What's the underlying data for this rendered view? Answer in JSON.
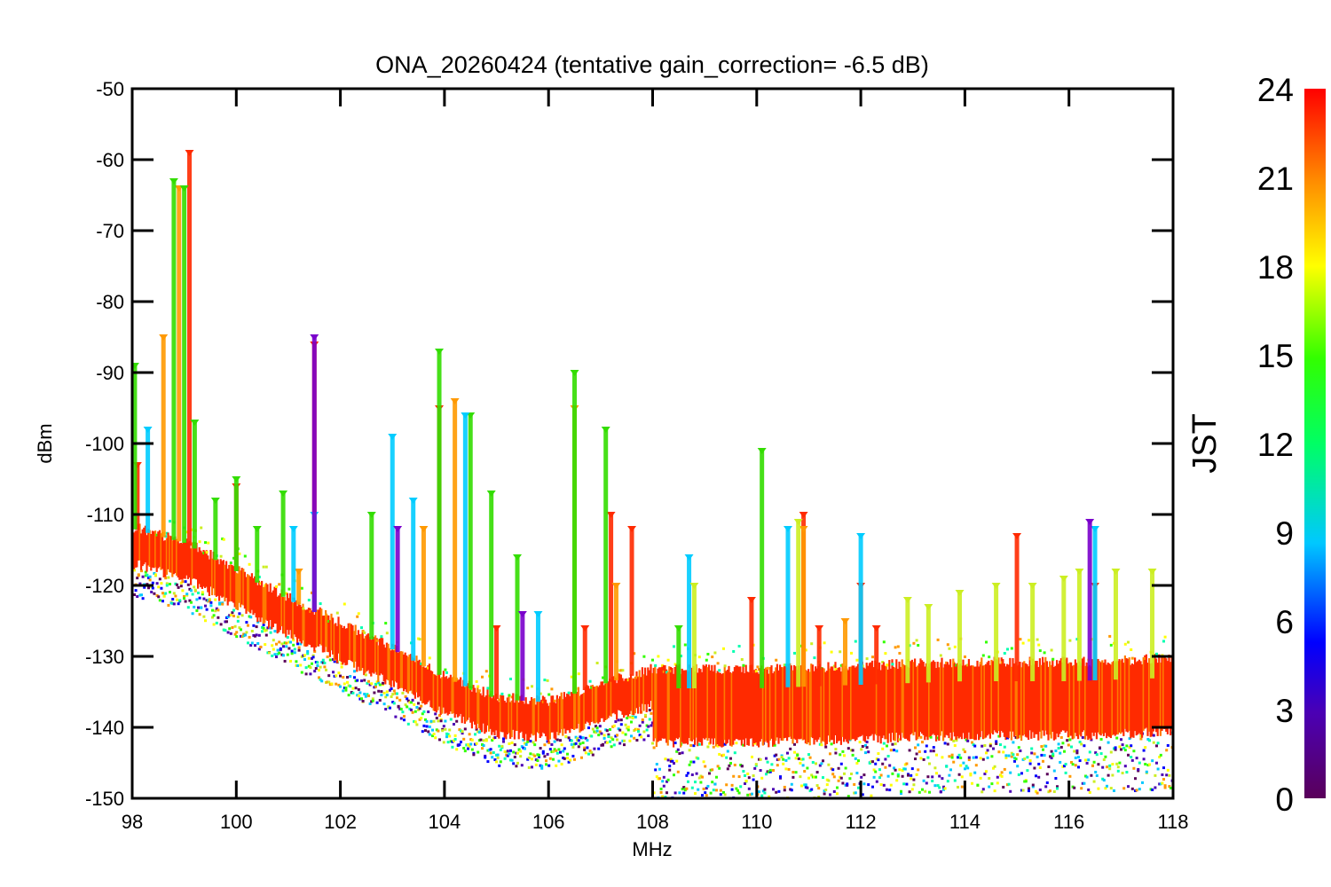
{
  "chart_data": {
    "type": "scatter",
    "title": "ONA_20260424 (tentative gain_correction= -6.5 dB)",
    "xlabel": "MHz",
    "ylabel": "dBm",
    "xlim": [
      98,
      118
    ],
    "ylim": [
      -150,
      -50
    ],
    "x_ticks": [
      98,
      100,
      102,
      104,
      106,
      108,
      110,
      112,
      114,
      116,
      118
    ],
    "y_ticks": [
      -50,
      -60,
      -70,
      -80,
      -90,
      -100,
      -110,
      -120,
      -130,
      -140,
      -150
    ],
    "colorbar": {
      "label": "JST",
      "range": [
        0,
        24
      ],
      "ticks": [
        0,
        3,
        6,
        9,
        12,
        15,
        18,
        21,
        24
      ]
    },
    "noise_floor": {
      "x": [
        98,
        99,
        100,
        101,
        102,
        103,
        104,
        105,
        106,
        107,
        107.95,
        108,
        110,
        112,
        114,
        116,
        118
      ],
      "level_dBm": [
        -115,
        -117,
        -121,
        -125,
        -128.5,
        -132,
        -136,
        -139,
        -139.5,
        -137,
        -135,
        -137.5,
        -137.5,
        -137,
        -136.5,
        -136.5,
        -136
      ]
    },
    "series": [
      {
        "name": "red carriers (22-24 JST)",
        "color": "#ff2a00",
        "points": [
          [
            98.1,
            -103
          ],
          [
            99.1,
            -59
          ],
          [
            100,
            -106
          ],
          [
            101.5,
            -86
          ],
          [
            103.9,
            -95
          ],
          [
            105,
            -126
          ],
          [
            106.7,
            -126
          ],
          [
            107.2,
            -110
          ],
          [
            107.6,
            -112
          ],
          [
            109.9,
            -122
          ],
          [
            110.9,
            -110
          ],
          [
            111.2,
            -126
          ],
          [
            112,
            -120
          ],
          [
            112.3,
            -126
          ],
          [
            115,
            -113
          ],
          [
            116.5,
            -120
          ]
        ]
      },
      {
        "name": "orange carriers (20-22 JST)",
        "color": "#ff9900",
        "points": [
          [
            98.6,
            -85
          ],
          [
            98.9,
            -64
          ],
          [
            101.2,
            -118
          ],
          [
            103.6,
            -112
          ],
          [
            104.2,
            -94
          ],
          [
            106.5,
            -95
          ],
          [
            107.3,
            -120
          ],
          [
            110.9,
            -112
          ],
          [
            111.7,
            -125
          ]
        ]
      },
      {
        "name": "green carriers (13-16 JST)",
        "color": "#33dd00",
        "points": [
          [
            98.05,
            -89
          ],
          [
            98.8,
            -63
          ],
          [
            99,
            -64
          ],
          [
            99.2,
            -97
          ],
          [
            99.6,
            -108
          ],
          [
            100,
            -105
          ],
          [
            100.4,
            -112
          ],
          [
            100.9,
            -107
          ],
          [
            102.6,
            -110
          ],
          [
            103.9,
            -87
          ],
          [
            104.5,
            -96
          ],
          [
            104.9,
            -107
          ],
          [
            105.4,
            -116
          ],
          [
            106.5,
            -90
          ],
          [
            107.1,
            -98
          ],
          [
            108.5,
            -126
          ],
          [
            110.1,
            -101
          ]
        ]
      },
      {
        "name": "cyan / blue carriers (7-11 JST)",
        "color": "#00ccff",
        "points": [
          [
            98.3,
            -98
          ],
          [
            101.1,
            -112
          ],
          [
            101.5,
            -110
          ],
          [
            103,
            -99
          ],
          [
            103.4,
            -108
          ],
          [
            104.4,
            -96
          ],
          [
            105.8,
            -124
          ],
          [
            108.7,
            -116
          ],
          [
            110.6,
            -112
          ],
          [
            112,
            -113
          ],
          [
            116.5,
            -112
          ]
        ]
      },
      {
        "name": "purple carriers (0-3 JST)",
        "color": "#7a00cc",
        "points": [
          [
            101.5,
            -85
          ],
          [
            103.1,
            -112
          ],
          [
            105.5,
            -124
          ],
          [
            116.4,
            -111
          ]
        ]
      },
      {
        "name": "yellow-green carriers (16-19 JST)",
        "color": "#ccee22",
        "points": [
          [
            108.8,
            -120
          ],
          [
            110.8,
            -111
          ],
          [
            112.9,
            -122
          ],
          [
            113.3,
            -123
          ],
          [
            113.9,
            -121
          ],
          [
            114.6,
            -120
          ],
          [
            115.3,
            -120
          ],
          [
            115.9,
            -119
          ],
          [
            116.2,
            -118
          ],
          [
            116.9,
            -118
          ],
          [
            117.6,
            -118
          ]
        ]
      }
    ]
  }
}
